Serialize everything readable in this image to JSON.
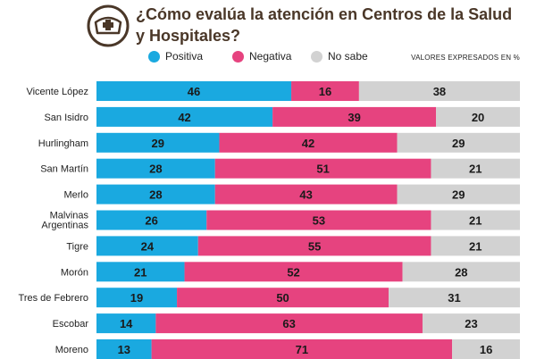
{
  "header": {
    "title_line1": "¿Cómo evalúa la atención en Centros de la Salud",
    "title_line2": "y Hospitales?",
    "icon": "nurse-cap-icon"
  },
  "legend": {
    "items": [
      {
        "label": "Positiva",
        "color": "#1aa9e0"
      },
      {
        "label": "Negativa",
        "color": "#e6437f"
      },
      {
        "label": "No sabe",
        "color": "#d2d2d2"
      }
    ],
    "note": "VALORES EXPRESADOS EN %"
  },
  "chart_data": {
    "type": "bar",
    "stacked": true,
    "orientation": "horizontal",
    "categories": [
      [
        "Vicente López"
      ],
      [
        "San Isidro"
      ],
      [
        "Hurlingham"
      ],
      [
        "San Martín"
      ],
      [
        "Merlo"
      ],
      [
        "Malvinas",
        "Argentinas"
      ],
      [
        "Tigre"
      ],
      [
        "Morón"
      ],
      [
        "Tres de Febrero"
      ],
      [
        "Escobar"
      ],
      [
        "Moreno"
      ]
    ],
    "series": [
      {
        "name": "Positiva",
        "color": "#1aa9e0",
        "values": [
          46,
          42,
          29,
          28,
          28,
          26,
          24,
          21,
          19,
          14,
          13
        ]
      },
      {
        "name": "Negativa",
        "color": "#e6437f",
        "values": [
          16,
          39,
          42,
          51,
          43,
          53,
          55,
          52,
          50,
          63,
          71
        ]
      },
      {
        "name": "No sabe",
        "color": "#d2d2d2",
        "values": [
          38,
          20,
          29,
          21,
          29,
          21,
          21,
          28,
          31,
          23,
          16
        ]
      }
    ]
  }
}
